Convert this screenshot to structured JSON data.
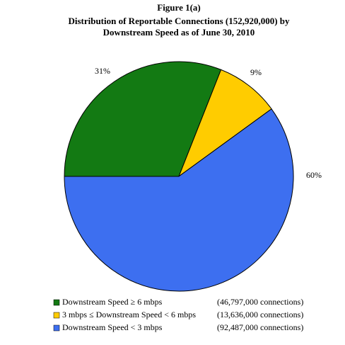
{
  "chart_data": {
    "type": "pie",
    "title": "Figure 1(a)",
    "subtitle": [
      "Distribution of Reportable Connections (152,920,000) by",
      "Downstream Speed as of June 30, 2010"
    ],
    "series": [
      {
        "name": "Downstream Speed ≥ 6 mbps",
        "color": "#137a13",
        "value": 31,
        "value_label": "31%",
        "detail": "(46,797,000 connections)"
      },
      {
        "name": "3 mbps ≤ Downstream Speed < 6 mbps",
        "color": "#ffcc00",
        "value": 9,
        "value_label": "9%",
        "detail": "(13,636,000 connections)"
      },
      {
        "name": "Downstream Speed < 3 mbps",
        "color": "#3d6ff0",
        "value": 60,
        "value_label": "60%",
        "detail": "(92,487,000 connections)"
      }
    ]
  }
}
